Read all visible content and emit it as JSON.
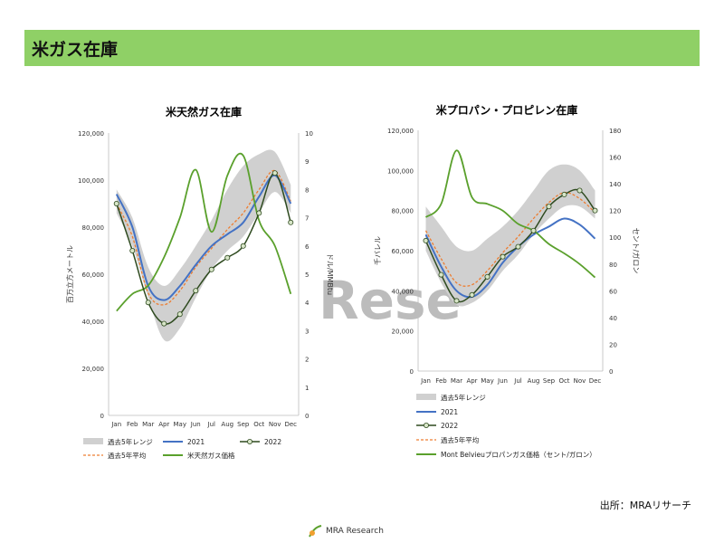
{
  "header": {
    "title": "米ガス在庫"
  },
  "watermark": "Rese",
  "source": "出所：MRAリサーチ",
  "logo": {
    "text": "MRA Research"
  },
  "colors": {
    "header_bg": "#8fd066",
    "range": "#d0d0d0",
    "y2021": "#4472c4",
    "y2022": "#2e4a1f",
    "avg": "#ed7d31",
    "price": "#5aa02c"
  },
  "chart_data": [
    {
      "type": "line",
      "title": "米天然ガス在庫",
      "ylabel": "百万立方メートル",
      "y2label": "ドル/MMBtu",
      "ylim": [
        0,
        120000
      ],
      "y2lim": [
        0,
        10
      ],
      "yticks": [
        "0",
        "20,000",
        "40,000",
        "60,000",
        "80,000",
        "100,000",
        "120,000"
      ],
      "y2ticks": [
        "0",
        "1",
        "2",
        "3",
        "4",
        "5",
        "6",
        "7",
        "8",
        "9",
        "10"
      ],
      "xticks": [
        "Jan",
        "Feb",
        "Mar",
        "Apr",
        "May",
        "Jun",
        "Jul",
        "Aug",
        "Sep",
        "Oct",
        "Nov",
        "Dec"
      ],
      "legend": [
        "過去5年レンジ",
        "2021",
        "2022",
        "過去5年平均",
        "米天然ガス価格"
      ],
      "range_low": [
        86000,
        72000,
        50000,
        32000,
        37000,
        50000,
        62000,
        70000,
        76000,
        86000,
        95000,
        86000
      ],
      "range_high": [
        96000,
        84000,
        63000,
        55000,
        62000,
        72000,
        83000,
        96000,
        106000,
        111000,
        112000,
        98000
      ],
      "series_2021": [
        94000,
        80000,
        55000,
        49000,
        55000,
        64000,
        72000,
        77000,
        82000,
        93000,
        102000,
        90000
      ],
      "series_2022": [
        90000,
        70000,
        48000,
        39000,
        43000,
        53000,
        62000,
        67000,
        72000,
        86000,
        103000,
        82000
      ],
      "series_avg": [
        90000,
        76000,
        52000,
        47000,
        53000,
        63000,
        71000,
        79000,
        86000,
        96000,
        104000,
        91000
      ],
      "series_price": [
        3.7,
        4.3,
        4.6,
        5.6,
        7.0,
        8.7,
        6.5,
        8.5,
        9.2,
        6.9,
        6.0,
        4.3
      ]
    },
    {
      "type": "line",
      "title": "米プロパン・プロピレン在庫",
      "ylabel": "千バレル",
      "y2label": "セント/ガロン",
      "ylim": [
        0,
        120000
      ],
      "y2lim": [
        0,
        180
      ],
      "yticks": [
        "0",
        "20,000",
        "40,000",
        "60,000",
        "80,000",
        "100,000",
        "120,000"
      ],
      "y2ticks": [
        "0",
        "20",
        "40",
        "60",
        "80",
        "100",
        "120",
        "140",
        "160",
        "180"
      ],
      "xticks": [
        "Jan",
        "Feb",
        "Mar",
        "Apr",
        "May",
        "Jun",
        "Jul",
        "Aug",
        "Sep",
        "Oct",
        "Nov",
        "Dec"
      ],
      "legend": [
        "過去5年レンジ",
        "2021",
        "2022",
        "過去5年平均",
        "Mont Belvieuプロパンガス価格（セント/ガロン）"
      ],
      "range_low": [
        60000,
        44000,
        33000,
        34000,
        40000,
        50000,
        58000,
        68000,
        76000,
        82000,
        82000,
        76000
      ],
      "range_high": [
        82000,
        72000,
        62000,
        60000,
        66000,
        72000,
        80000,
        90000,
        100000,
        103000,
        100000,
        90000
      ],
      "series_2021": [
        68000,
        52000,
        40000,
        37000,
        43000,
        54000,
        62000,
        68000,
        72000,
        76000,
        73000,
        66000
      ],
      "series_2022": [
        65000,
        48000,
        35000,
        38000,
        47000,
        57000,
        62000,
        70000,
        82000,
        88000,
        90000,
        80000
      ],
      "series_avg": [
        70000,
        56000,
        44000,
        43000,
        50000,
        59000,
        67000,
        76000,
        84000,
        89000,
        86000,
        79000
      ],
      "series_price": [
        115,
        125,
        165,
        130,
        125,
        120,
        110,
        105,
        95,
        88,
        80,
        70
      ]
    }
  ]
}
